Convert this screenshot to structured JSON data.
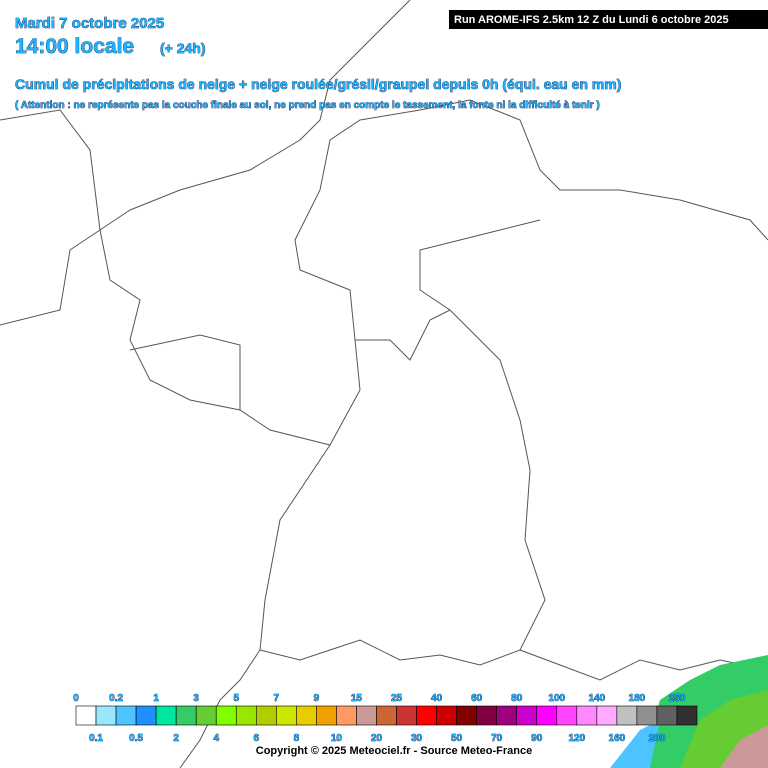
{
  "header": {
    "date": "Mardi 7 octobre 2025",
    "time": "14:00 locale",
    "offset": "(+ 24h)",
    "run": "Run AROME-IFS 2.5km 12 Z du Lundi 6 octobre 2025",
    "title": "Cumul de précipitations de neige + neige roulée/grésil/graupel depuis 0h (équi. eau en mm)",
    "note": "( Attention : ne représente pas la couche finale au sol, ne prend pas en compte le tassement, la fonte ni la difficulté à tenir )"
  },
  "legend": {
    "steps": [
      {
        "value": 0,
        "color": "#ffffff"
      },
      {
        "value": 0.1,
        "color": "#99e6ff"
      },
      {
        "value": 0.2,
        "color": "#4dc3ff"
      },
      {
        "value": 0.5,
        "color": "#1e90ff"
      },
      {
        "value": 1,
        "color": "#00e6a0"
      },
      {
        "value": 2,
        "color": "#33cc66"
      },
      {
        "value": 3,
        "color": "#66cc33"
      },
      {
        "value": 4,
        "color": "#80ff00"
      },
      {
        "value": 5,
        "color": "#99e600"
      },
      {
        "value": 6,
        "color": "#b3cc00"
      },
      {
        "value": 7,
        "color": "#cce600"
      },
      {
        "value": 8,
        "color": "#e6cc00"
      },
      {
        "value": 9,
        "color": "#f0a000"
      },
      {
        "value": 10,
        "color": "#ff9966"
      },
      {
        "value": 15,
        "color": "#cc9999"
      },
      {
        "value": 20,
        "color": "#cc6633"
      },
      {
        "value": 25,
        "color": "#cc3333"
      },
      {
        "value": 30,
        "color": "#ff0000"
      },
      {
        "value": 40,
        "color": "#cc0000"
      },
      {
        "value": 50,
        "color": "#800000"
      },
      {
        "value": 60,
        "color": "#800040"
      },
      {
        "value": 70,
        "color": "#a0007f"
      },
      {
        "value": 80,
        "color": "#cc00cc"
      },
      {
        "value": 90,
        "color": "#ff00ff"
      },
      {
        "value": 100,
        "color": "#ff44ff"
      },
      {
        "value": 120,
        "color": "#ff88ff"
      },
      {
        "value": 140,
        "color": "#ffaaff"
      },
      {
        "value": 160,
        "color": "#c0c0c0"
      },
      {
        "value": 180,
        "color": "#909090"
      },
      {
        "value": 200,
        "color": "#606060"
      },
      {
        "value": 250,
        "color": "#303030"
      }
    ]
  },
  "copyright": "Copyright © 2025 Meteociel.fr - Source Meteo-France"
}
